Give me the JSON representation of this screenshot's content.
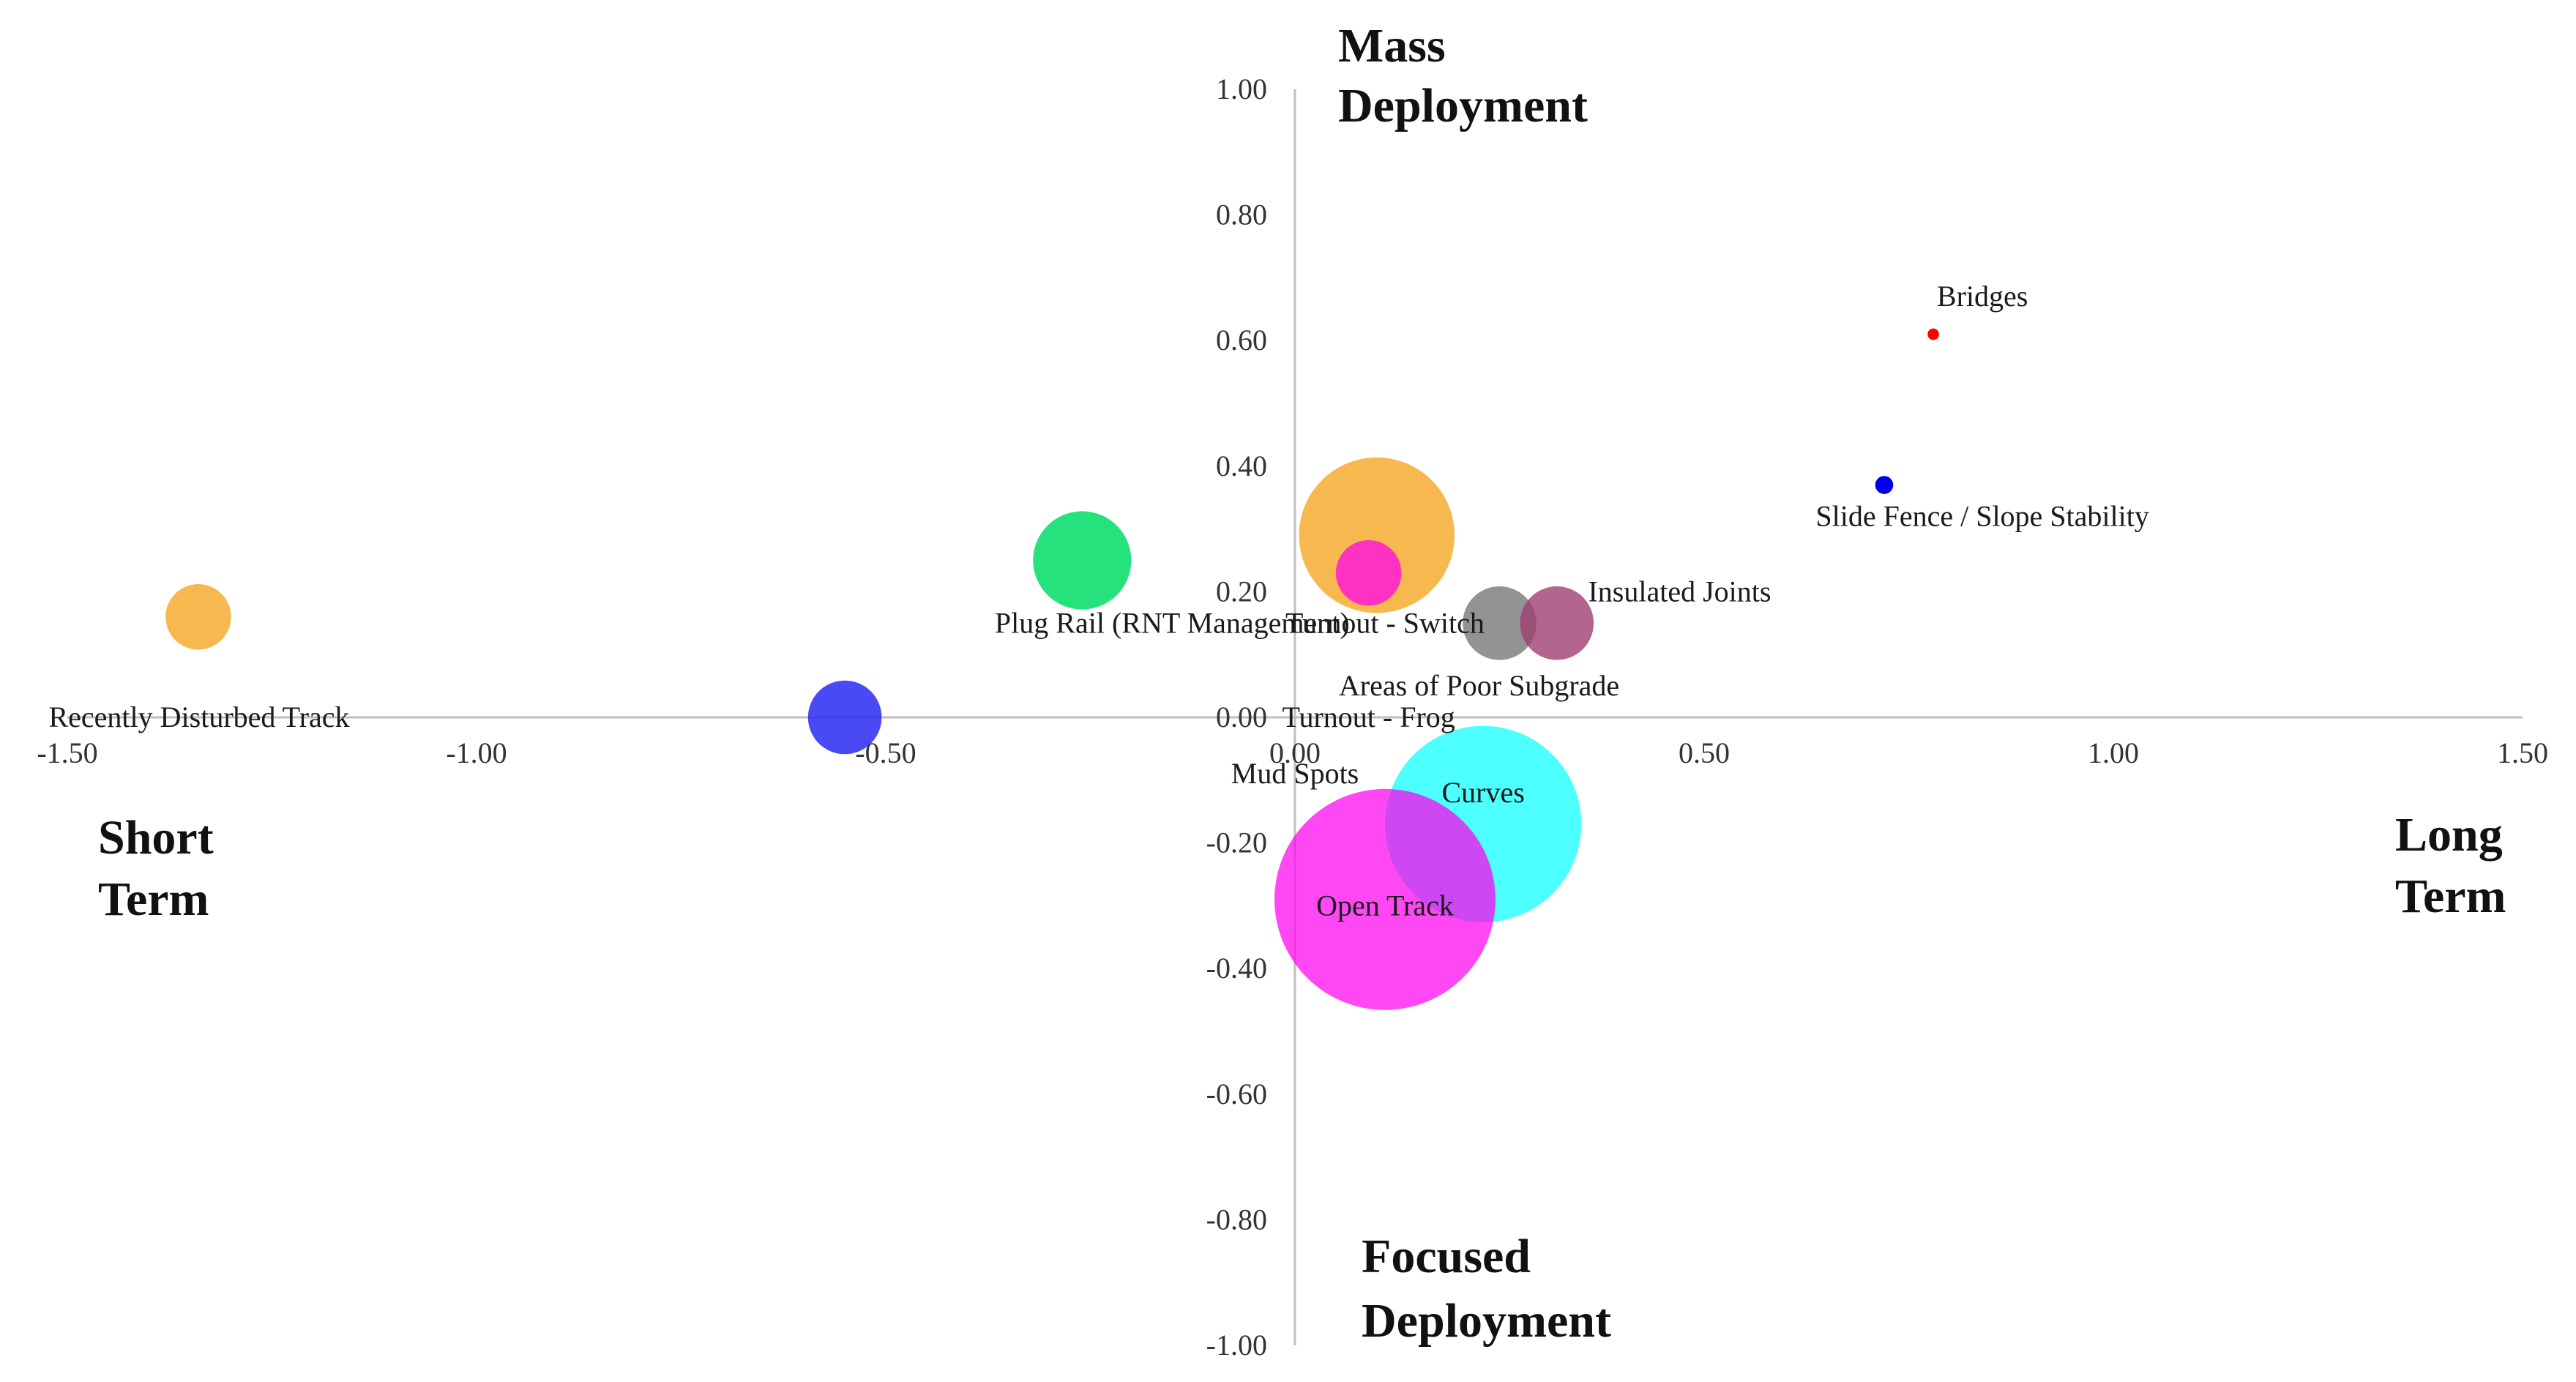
{
  "chart_data": {
    "type": "bubble",
    "x_range": [
      -1.5,
      1.5
    ],
    "y_range": [
      -1.0,
      1.0
    ],
    "x_ticks": [
      "-1.50",
      "-1.00",
      "-0.50",
      "0.00",
      "0.50",
      "1.00",
      "1.50"
    ],
    "y_ticks": [
      "1.00",
      "0.80",
      "0.60",
      "0.40",
      "0.20",
      "0.00",
      "-0.20",
      "-0.40",
      "-0.60",
      "-0.80",
      "-1.00"
    ],
    "quadrant_labels": {
      "top": [
        "Mass",
        "Deployment"
      ],
      "bottom": [
        "Focused",
        "Deployment"
      ],
      "left": [
        "Short",
        "Term"
      ],
      "right": [
        "Long",
        "Term"
      ]
    },
    "bubbles": [
      {
        "name": "Recently Disturbed Track",
        "x": -1.34,
        "y": 0.16,
        "size": 0.04,
        "color": "#f5a623",
        "opacity": 0.8
      },
      {
        "name": "Mud Spots",
        "x": -0.55,
        "y": 0.0,
        "size": 0.045,
        "color": "#2a2af2",
        "opacity": 0.85
      },
      {
        "name": "Plug Rail (RNT Management)",
        "x": -0.26,
        "y": 0.25,
        "size": 0.06,
        "color": "#00dd66",
        "opacity": 0.85
      },
      {
        "name": "Turnout - Switch",
        "x": 0.1,
        "y": 0.29,
        "size": 0.095,
        "color": "#f5a623",
        "opacity": 0.8
      },
      {
        "name": "Turnout - Frog",
        "x": 0.09,
        "y": 0.23,
        "size": 0.04,
        "color": "#ff22cc",
        "opacity": 0.9
      },
      {
        "name": "Areas of Poor Subgrade",
        "x": 0.25,
        "y": 0.15,
        "size": 0.045,
        "color": "#808080",
        "opacity": 0.85
      },
      {
        "name": "Insulated Joints",
        "x": 0.32,
        "y": 0.15,
        "size": 0.045,
        "color": "#a04070",
        "opacity": 0.8
      },
      {
        "name": "Bridges",
        "x": 0.78,
        "y": 0.61,
        "size": 0.007,
        "color": "#ff0000",
        "opacity": 1.0
      },
      {
        "name": "Slide Fence / Slope Stability",
        "x": 0.72,
        "y": 0.37,
        "size": 0.011,
        "color": "#0000ee",
        "opacity": 1.0
      },
      {
        "name": "Curves",
        "x": 0.23,
        "y": -0.17,
        "size": 0.12,
        "color": "#11ffff",
        "opacity": 0.75
      },
      {
        "name": "Open Track",
        "x": 0.11,
        "y": -0.29,
        "size": 0.135,
        "color": "#ff00ee",
        "opacity": 0.72
      }
    ]
  }
}
